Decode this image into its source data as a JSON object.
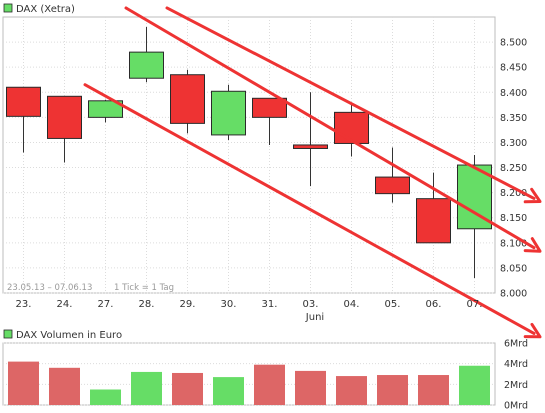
{
  "chart_data": [
    {
      "type": "candlestick",
      "title": "DAX (Xetra)",
      "date_range": "23.05.13 – 07.06.13",
      "interval_note": "1 Tick = 1 Tag",
      "categories": [
        "23.",
        "24.",
        "27.",
        "28.",
        "29.",
        "30.",
        "31.",
        "03.",
        "04.",
        "05.",
        "06.",
        "07."
      ],
      "month_label": "Juni",
      "ylim": [
        8000,
        8550
      ],
      "yticks": [
        "8.000",
        "8.050",
        "8.100",
        "8.150",
        "8.200",
        "8.250",
        "8.300",
        "8.350",
        "8.400",
        "8.450",
        "8.500"
      ],
      "grid": true,
      "legend": "top-left",
      "series": [
        {
          "name": "DAX (Xetra)",
          "values": [
            {
              "open": 8410,
              "high": 8410,
              "low": 8280,
              "close": 8352
            },
            {
              "open": 8392,
              "high": 8392,
              "low": 8260,
              "close": 8308
            },
            {
              "open": 8350,
              "high": 8385,
              "low": 8340,
              "close": 8383
            },
            {
              "open": 8428,
              "high": 8530,
              "low": 8420,
              "close": 8480
            },
            {
              "open": 8435,
              "high": 8445,
              "low": 8318,
              "close": 8338
            },
            {
              "open": 8315,
              "high": 8415,
              "low": 8305,
              "close": 8402
            },
            {
              "open": 8388,
              "high": 8388,
              "low": 8295,
              "close": 8350
            },
            {
              "open": 8295,
              "high": 8400,
              "low": 8213,
              "close": 8288
            },
            {
              "open": 8360,
              "high": 8375,
              "low": 8272,
              "close": 8298
            },
            {
              "open": 8231,
              "high": 8290,
              "low": 8180,
              "close": 8198
            },
            {
              "open": 8188,
              "high": 8240,
              "low": 8100,
              "close": 8100
            },
            {
              "open": 8128,
              "high": 8275,
              "low": 8030,
              "close": 8255
            }
          ]
        }
      ],
      "trend_lines": [
        {
          "from": {
            "x": "27.",
            "y": 8415
          },
          "to": {
            "x": "07.",
            "y": 7985
          }
        },
        {
          "from": {
            "x": "28.",
            "y": 8568
          },
          "to": {
            "x": "07.",
            "y": 8160
          }
        },
        {
          "from": {
            "x": "29.",
            "y": 8568
          },
          "to": {
            "x": "07.",
            "y": 8250
          }
        }
      ],
      "colors": {
        "up": "#66dd66",
        "down": "#ee3333",
        "trend_line": "#ee3333"
      }
    },
    {
      "type": "bar",
      "title": "DAX Volumen in Euro",
      "categories": [
        "23.",
        "24.",
        "27.",
        "28.",
        "29.",
        "30.",
        "31.",
        "03.",
        "04.",
        "05.",
        "06.",
        "07."
      ],
      "values": [
        4.2,
        3.6,
        1.5,
        3.2,
        3.1,
        2.7,
        3.9,
        3.3,
        2.8,
        2.9,
        2.9,
        3.8
      ],
      "direction": [
        "down",
        "down",
        "up",
        "up",
        "down",
        "up",
        "down",
        "down",
        "down",
        "down",
        "down",
        "up"
      ],
      "ylim": [
        0,
        6
      ],
      "yticks": [
        "0Mrd",
        "2Mrd",
        "4Mrd",
        "6Mrd"
      ],
      "legend": "top-left",
      "colors": {
        "up": "#66dd66",
        "down": "#dd6666"
      }
    }
  ]
}
